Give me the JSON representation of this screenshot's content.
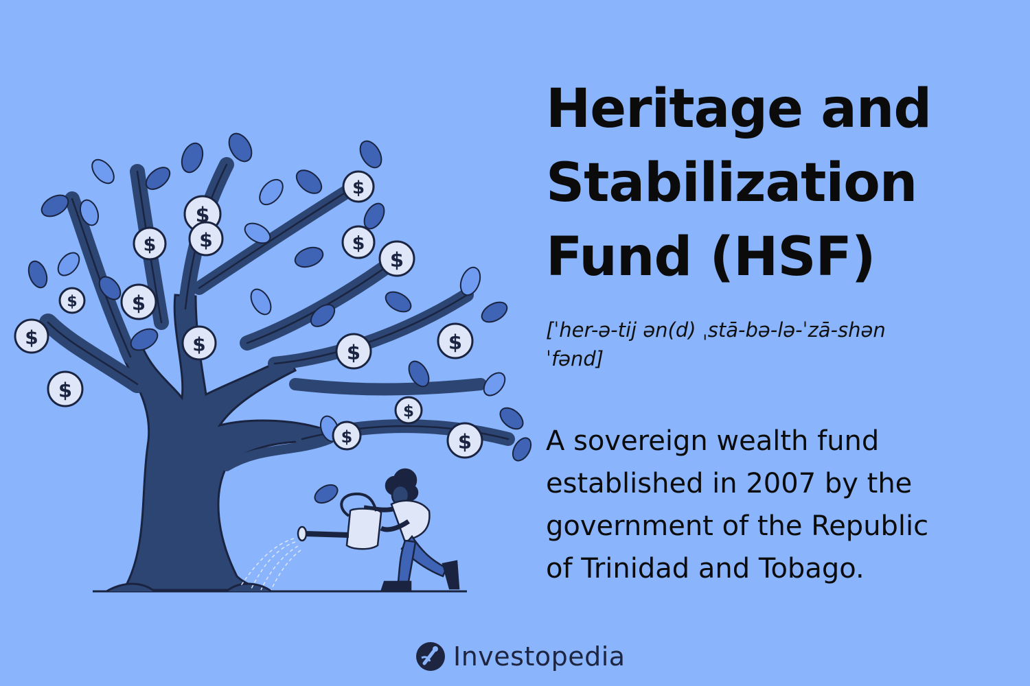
{
  "title": {
    "line1": "Heritage and",
    "line2": "Stabilization",
    "line3": "Fund (HSF)"
  },
  "pronunciation": {
    "line1": "[ˈher-ə-tij ən(d) ˌstā-bə-lə-ˈzā-shən",
    "line2": "ˈfənd]"
  },
  "definition": {
    "line1": "A sovereign wealth fund",
    "line2": "established in 2007 by the",
    "line3": "government of the Republic",
    "line4": "of Trinidad and Tobago."
  },
  "coin_symbol": "$",
  "brand": {
    "name": "Investopedia",
    "icon": "investopedia-logo-icon"
  },
  "colors": {
    "background": "#8ab4fb",
    "trunk": "#2d4572",
    "outline": "#1a2440",
    "leaf_dark": "#3f63b5",
    "leaf_light": "#6f9bf0",
    "coin": "#dfe6f8",
    "text": "#0b0b0b"
  }
}
